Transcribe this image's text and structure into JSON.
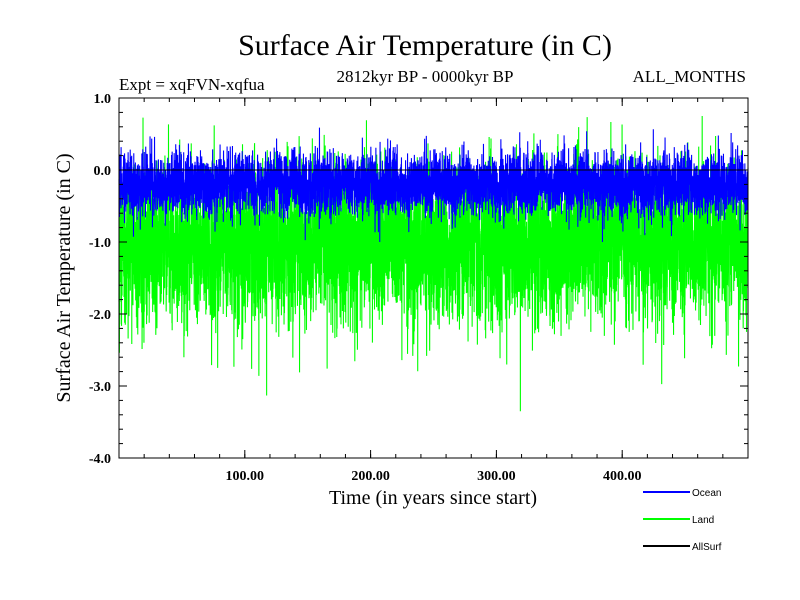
{
  "chart_data": {
    "type": "line",
    "title": "Surface Air Temperature (in C)",
    "subtitle_left": "Expt = xqFVN-xqfua",
    "subtitle_center": "2812kyr BP - 0000kyr BP",
    "subtitle_right": "ALL_MONTHS",
    "xlabel": "Time (in years since start)",
    "ylabel": "Surface Air Temperature (in C)",
    "xlim": [
      0,
      500
    ],
    "ylim": [
      -4.0,
      1.0
    ],
    "x_ticks": [
      100,
      200,
      300,
      400
    ],
    "x_tick_labels": [
      "100.00",
      "200.00",
      "300.00",
      "400.00"
    ],
    "y_ticks": [
      1.0,
      0.0,
      -1.0,
      -2.0,
      -3.0,
      -4.0
    ],
    "y_tick_labels": [
      "1.0",
      "0.0",
      "-1.0",
      "-2.0",
      "-3.0",
      "-4.0"
    ],
    "grid": false,
    "legend_position": "bottom-right",
    "series": [
      {
        "name": "Ocean",
        "color": "#0000ff",
        "mean": -0.2,
        "min": -1.0,
        "max": 0.6,
        "n_points": 6000
      },
      {
        "name": "Land",
        "color": "#00ff00",
        "mean": -1.05,
        "min": -3.35,
        "max": 0.75,
        "n_points": 6000
      },
      {
        "name": "AllSurf",
        "color": "#000000",
        "values_constant": 0.0
      }
    ]
  }
}
